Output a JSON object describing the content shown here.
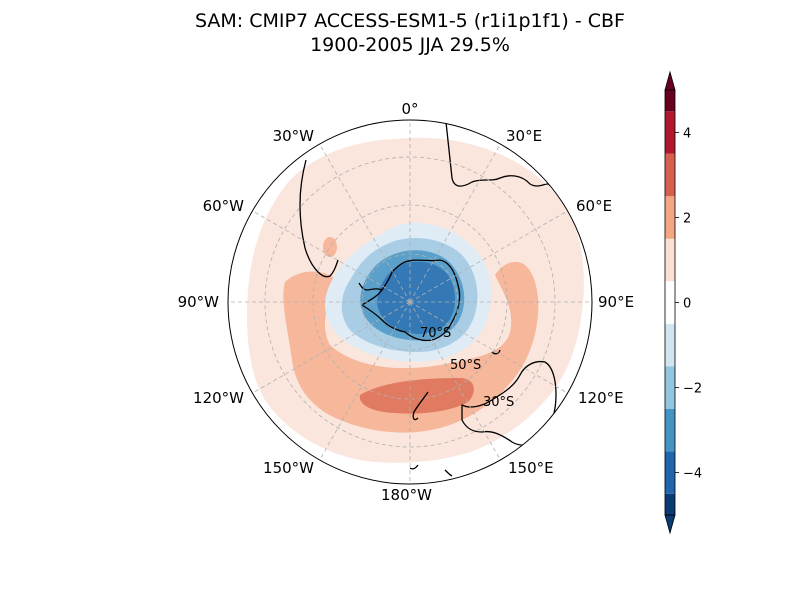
{
  "header": {
    "title_line1": "SAM: CMIP7 ACCESS-ESM1-5 (r1i1p1f1) - CBF",
    "title_line2": "1900-2005 JJA 29.5%"
  },
  "chart_data": {
    "type": "heatmap",
    "projection": "south-polar stereographic",
    "title": "SAM: CMIP7 ACCESS-ESM1-5 (r1i1p1f1) - CBF",
    "subtitle": "1900-2005 JJA 29.5%",
    "lon_labels": [
      "0°",
      "30°E",
      "60°E",
      "90°E",
      "120°E",
      "150°E",
      "180°W",
      "150°W",
      "120°W",
      "90°W",
      "60°W",
      "30°W"
    ],
    "lat_labels": [
      "30°S",
      "50°S",
      "70°S"
    ],
    "grid": true,
    "colormap": "RdBu_r",
    "levels": [
      -5,
      -4.5,
      -3.5,
      -2.5,
      -1.5,
      -0.5,
      0.5,
      1.5,
      2.5,
      3.5,
      4.5,
      5
    ],
    "level_colors": [
      "#0b3b73",
      "#2066ac",
      "#4393c3",
      "#92c5de",
      "#d1e5f0",
      "#ffffff",
      "#fae0d2",
      "#f4a582",
      "#d6604d",
      "#b2182b",
      "#67001f"
    ],
    "colorbar": {
      "ticks": [
        -4,
        -2,
        0,
        2,
        4
      ],
      "tick_labels": [
        "−4",
        "−2",
        "0",
        "2",
        "4"
      ],
      "extend": "both",
      "position": "right"
    },
    "pattern_summary": {
      "center_anomaly_min": -4,
      "midlatitude_ring_max": 3,
      "strongest_positive_sector": "southern Pacific (150°W–180°)"
    }
  }
}
